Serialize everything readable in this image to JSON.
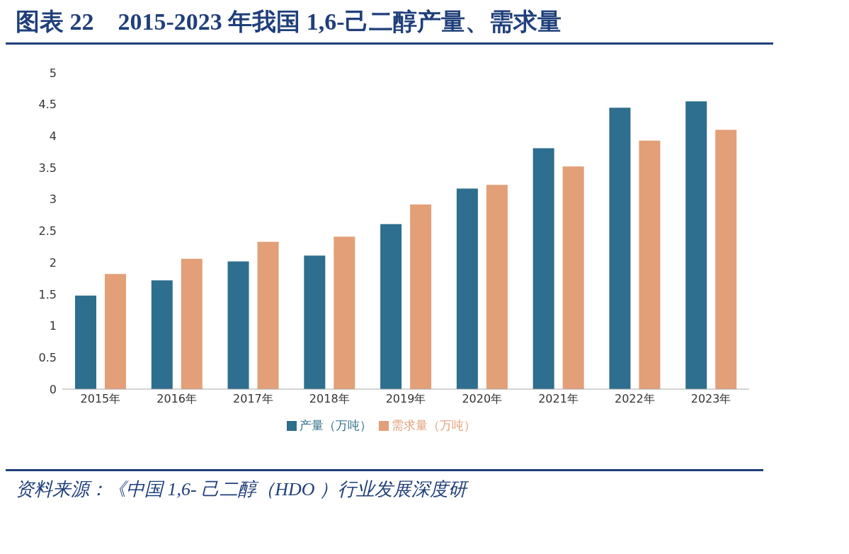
{
  "chart_data": {
    "type": "bar",
    "title": "图表 22　2015-2023 年我国 1,6-己二醇产量、需求量",
    "categories": [
      "2015年",
      "2016年",
      "2017年",
      "2018年",
      "2019年",
      "2020年",
      "2021年",
      "2022年",
      "2023年"
    ],
    "series": [
      {
        "name": "产量（万吨）",
        "color": "#2e6e8e",
        "values": [
          1.48,
          1.72,
          2.02,
          2.11,
          2.61,
          3.17,
          3.81,
          4.45,
          4.55
        ]
      },
      {
        "name": "需求量（万吨）",
        "color": "#e39f78",
        "values": [
          1.82,
          2.06,
          2.33,
          2.41,
          2.92,
          3.23,
          3.52,
          3.93,
          4.1
        ]
      }
    ],
    "ylim": [
      0,
      5
    ],
    "yticks": [
      0,
      0.5,
      1,
      1.5,
      2,
      2.5,
      3,
      3.5,
      4,
      4.5,
      5
    ],
    "grid": false,
    "legend": "bottom",
    "annotations": [
      "资料来源：《中国 1,6- 己二醇（HDO ）行业发展深度研"
    ]
  }
}
